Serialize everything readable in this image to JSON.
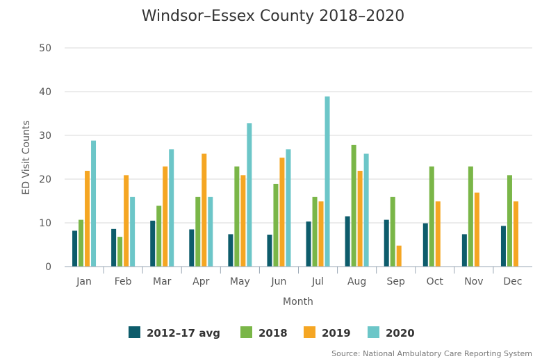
{
  "chart_data": {
    "type": "bar",
    "title": "Windsor–Essex County 2018–2020",
    "xlabel": "Month",
    "ylabel": "ED Visit Counts",
    "ylim": [
      0,
      50
    ],
    "yticks": [
      0,
      10,
      20,
      30,
      40,
      50
    ],
    "grid": true,
    "legend_position": "bottom",
    "categories": [
      "Jan",
      "Feb",
      "Mar",
      "Apr",
      "May",
      "Jun",
      "Jul",
      "Aug",
      "Sep",
      "Oct",
      "Nov",
      "Dec"
    ],
    "series": [
      {
        "name": "2012–17 avg",
        "color": "#0d5c6b",
        "values": [
          8.2,
          8.6,
          10.5,
          8.5,
          7.4,
          7.3,
          10.3,
          11.5,
          10.7,
          9.9,
          7.4,
          9.3
        ]
      },
      {
        "name": "2018",
        "color": "#7ab648",
        "values": [
          10.7,
          6.8,
          13.9,
          15.9,
          22.9,
          18.9,
          15.9,
          27.8,
          15.9,
          22.9,
          22.9,
          20.9
        ]
      },
      {
        "name": "2019",
        "color": "#f5a623",
        "values": [
          21.9,
          20.9,
          22.9,
          25.8,
          20.9,
          24.9,
          14.9,
          21.9,
          4.8,
          14.9,
          16.9,
          14.9
        ]
      },
      {
        "name": "2020",
        "color": "#6cc6c8",
        "values": [
          28.8,
          15.9,
          26.8,
          15.9,
          32.8,
          26.8,
          38.9,
          25.8,
          null,
          null,
          null,
          null
        ]
      }
    ],
    "source": "Source: National Ambulatory Care Reporting System"
  }
}
